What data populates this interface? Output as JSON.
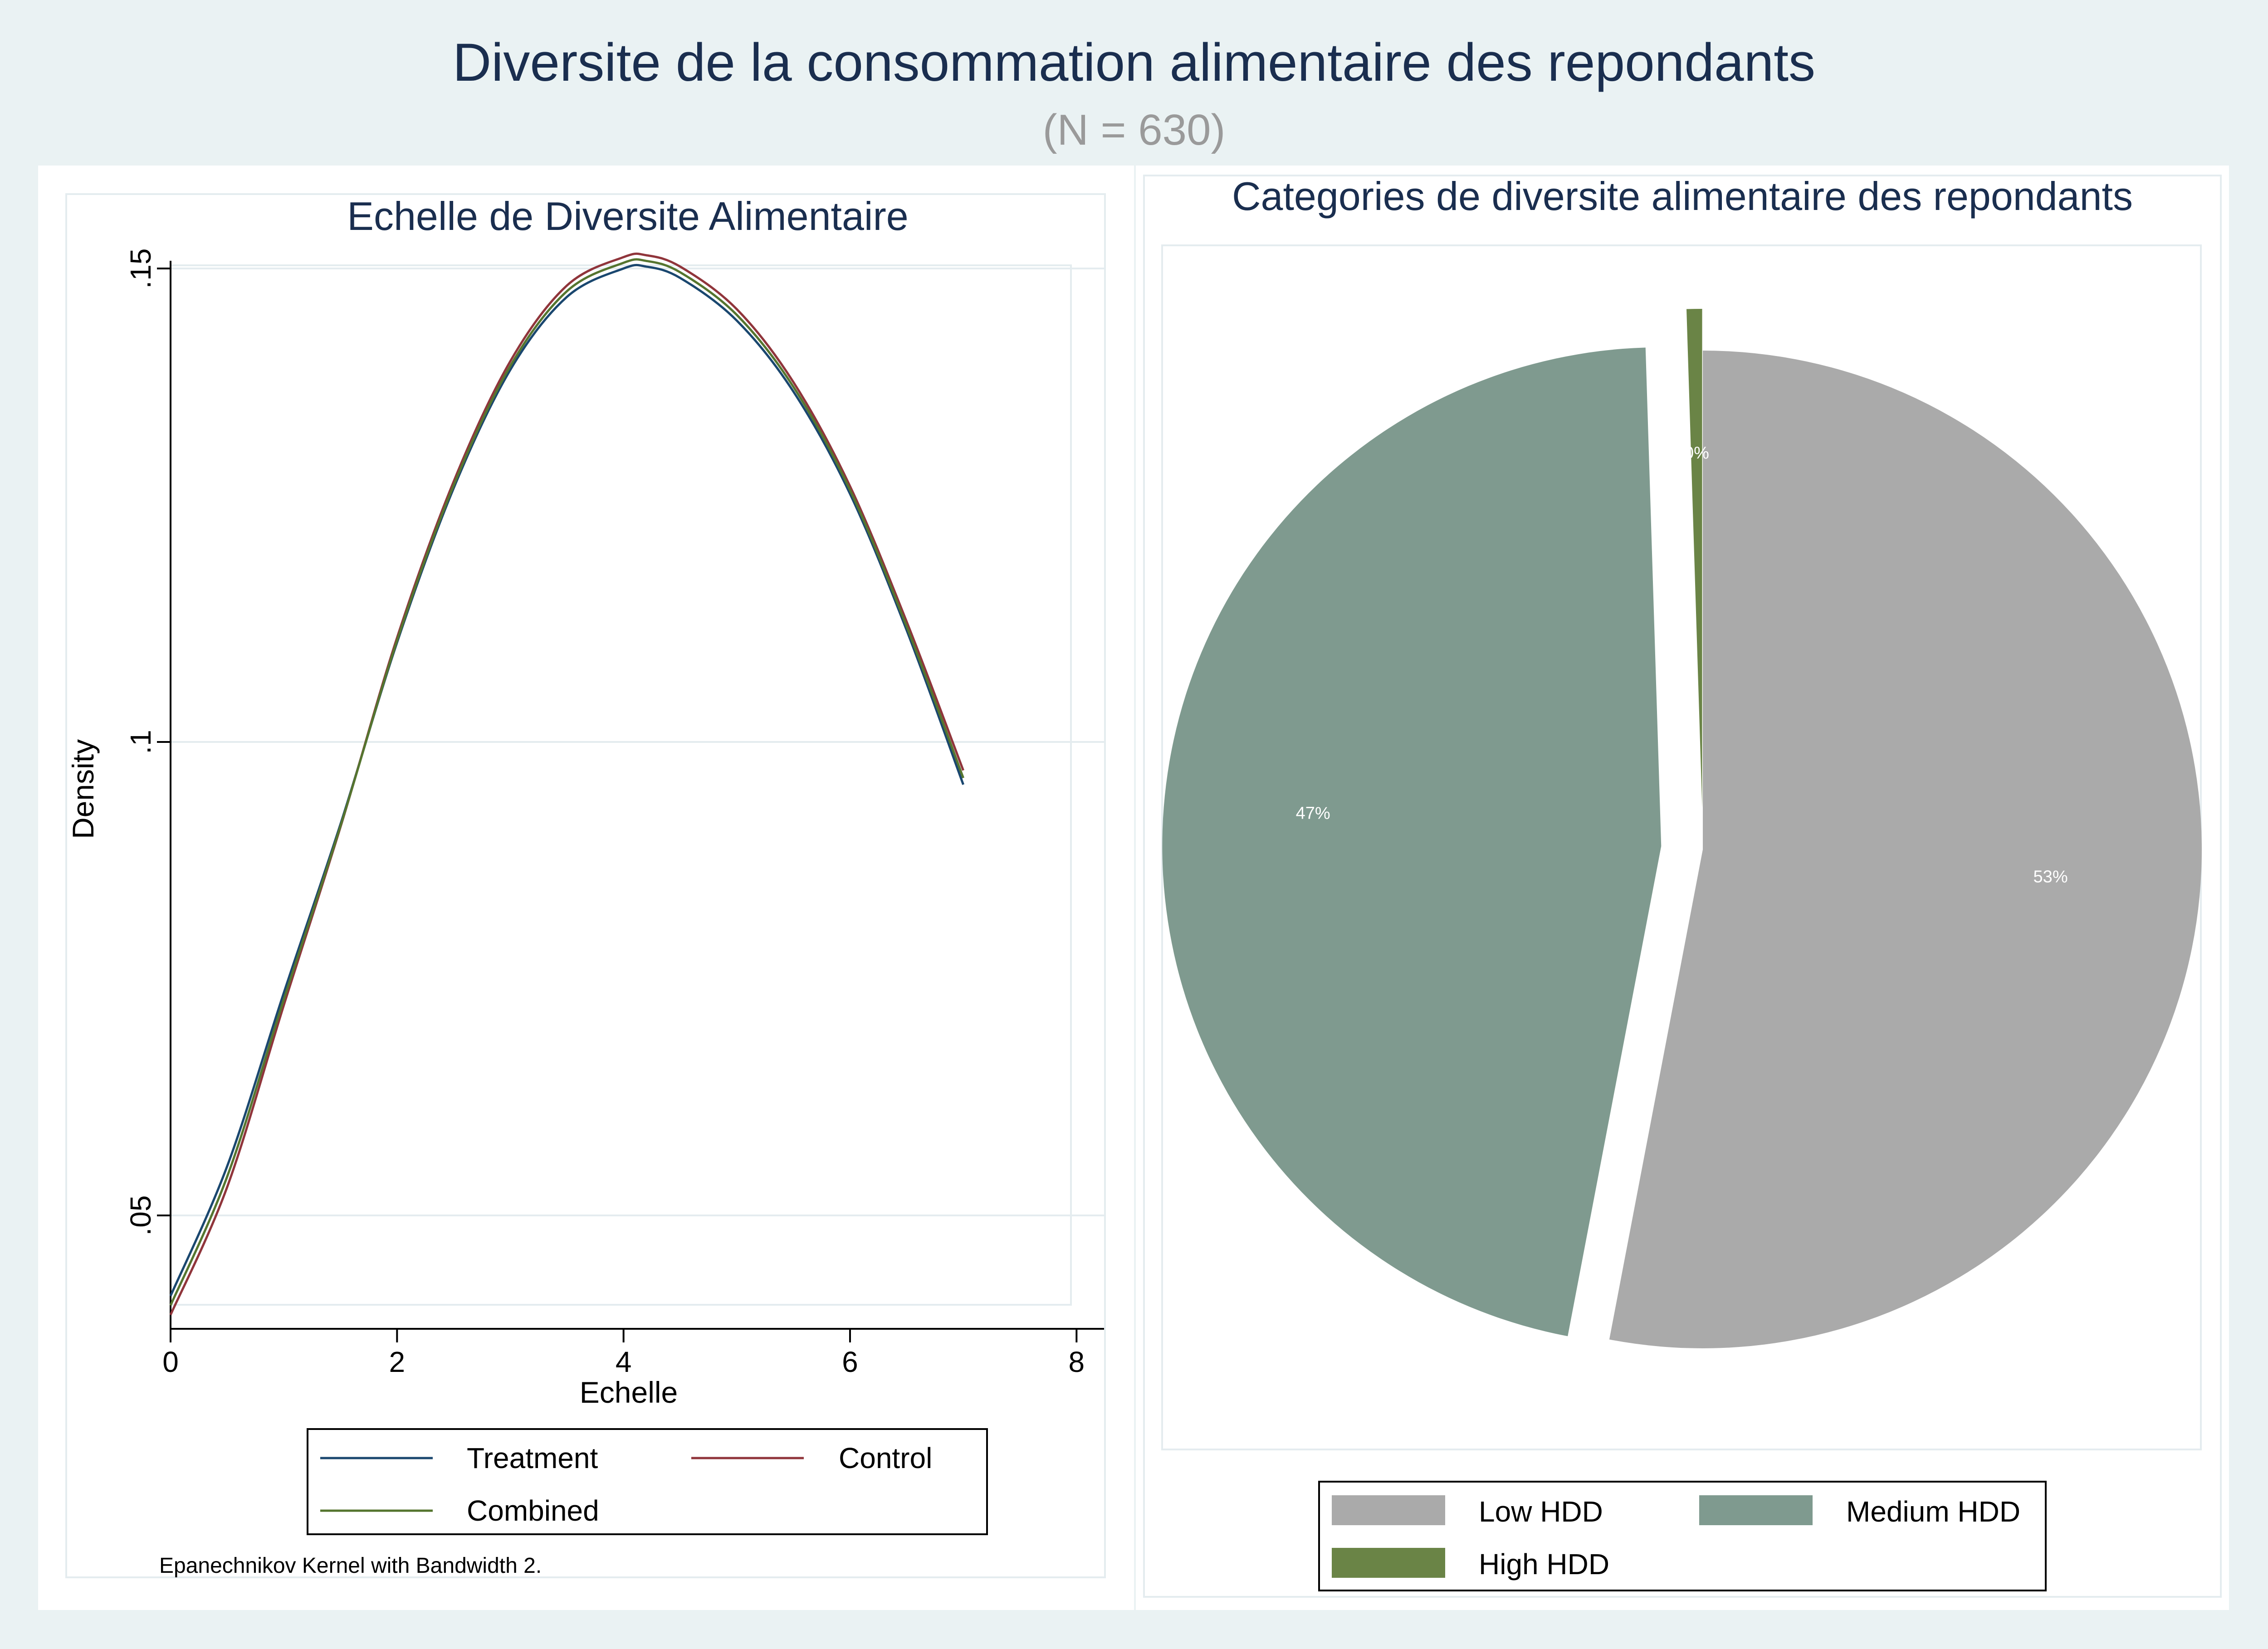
{
  "title": "Diversite de la consommation alimentaire des repondants",
  "subtitle": "(N = 630)",
  "colors": {
    "background": "#eaf2f3",
    "title": "#1a2e4f",
    "treatment": "#1a476f",
    "control": "#90353b",
    "combined": "#55752f",
    "low": "#aaaaaa",
    "medium": "#7f9a8f",
    "high": "#6a8446"
  },
  "chart_data": [
    {
      "type": "line",
      "title": "Echelle de Diversite Alimentaire",
      "xlabel": "Echelle",
      "ylabel": "Density",
      "xlim": [
        0,
        8
      ],
      "ylim": [
        0.04,
        0.155
      ],
      "xticks": [
        0,
        2,
        4,
        6,
        8
      ],
      "yticks": [
        0.05,
        0.1,
        0.15
      ],
      "xtick_labels": [
        "0",
        "2",
        "4",
        "6",
        "8"
      ],
      "ytick_labels": [
        ".05",
        ".1",
        ".15"
      ],
      "grid": true,
      "legend_position": "bottom",
      "note": "Epanechnikov Kernel with Bandwidth 2.",
      "x": [
        0,
        0.5,
        1,
        1.5,
        2,
        2.5,
        3,
        3.5,
        4,
        4.2,
        4.5,
        5,
        5.5,
        6,
        6.5,
        7
      ],
      "series": [
        {
          "name": "Treatment",
          "color_key": "treatment",
          "values": [
            0.0415,
            0.0552,
            0.0735,
            0.0913,
            0.1105,
            0.1268,
            0.1393,
            0.147,
            0.15,
            0.1502,
            0.149,
            0.1445,
            0.137,
            0.1262,
            0.1118,
            0.0955
          ]
        },
        {
          "name": "Control",
          "color_key": "control",
          "values": [
            0.0395,
            0.053,
            0.0722,
            0.091,
            0.111,
            0.1275,
            0.1402,
            0.1482,
            0.1512,
            0.1514,
            0.1502,
            0.1457,
            0.138,
            0.127,
            0.1127,
            0.097
          ]
        },
        {
          "name": "Combined",
          "color_key": "combined",
          "values": [
            0.0405,
            0.0541,
            0.0728,
            0.0911,
            0.1107,
            0.1271,
            0.1397,
            0.1476,
            0.1506,
            0.1508,
            0.1496,
            0.1451,
            0.1375,
            0.1266,
            0.1122,
            0.0962
          ]
        }
      ]
    },
    {
      "type": "pie",
      "title": "Categories de diversite alimentaire des repondants",
      "legend_position": "bottom",
      "slices": [
        {
          "label": "Low HDD",
          "value": 53,
          "value_label": "53%",
          "color_key": "low",
          "exploded": false
        },
        {
          "label": "Medium HDD",
          "value": 46.5,
          "value_label": "47%",
          "color_key": "medium",
          "exploded": true
        },
        {
          "label": "High HDD",
          "value": 0.5,
          "value_label": "0%",
          "color_key": "high",
          "exploded": true
        }
      ]
    }
  ]
}
